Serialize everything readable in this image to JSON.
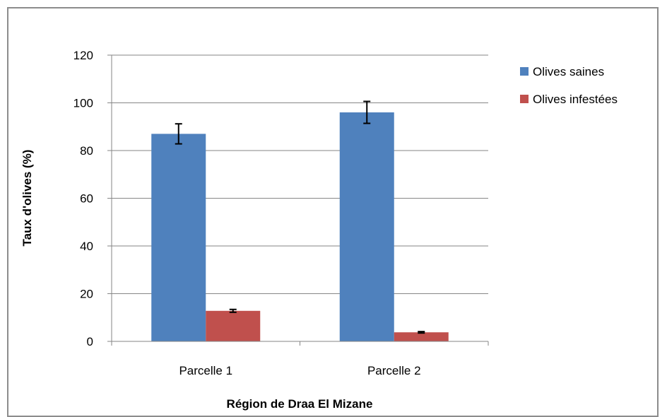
{
  "chart_data": {
    "type": "bar",
    "title": "",
    "xlabel": "Région de Draa El Mizane",
    "ylabel": "Taux d'olives (%)",
    "categories": [
      "Parcelle 1",
      "Parcelle 2"
    ],
    "ylim": [
      0,
      120
    ],
    "yticks": [
      0,
      20,
      40,
      60,
      80,
      100,
      120
    ],
    "grid": true,
    "legend_position": "top-right",
    "series": [
      {
        "name": "Olives saines",
        "color": "#4f81bd",
        "values": [
          87,
          96
        ],
        "error": [
          4.2,
          4.6
        ]
      },
      {
        "name": "Olives infestées",
        "color": "#c0504d",
        "values": [
          12.8,
          3.8
        ],
        "error": [
          0.6,
          0.3
        ]
      }
    ]
  }
}
